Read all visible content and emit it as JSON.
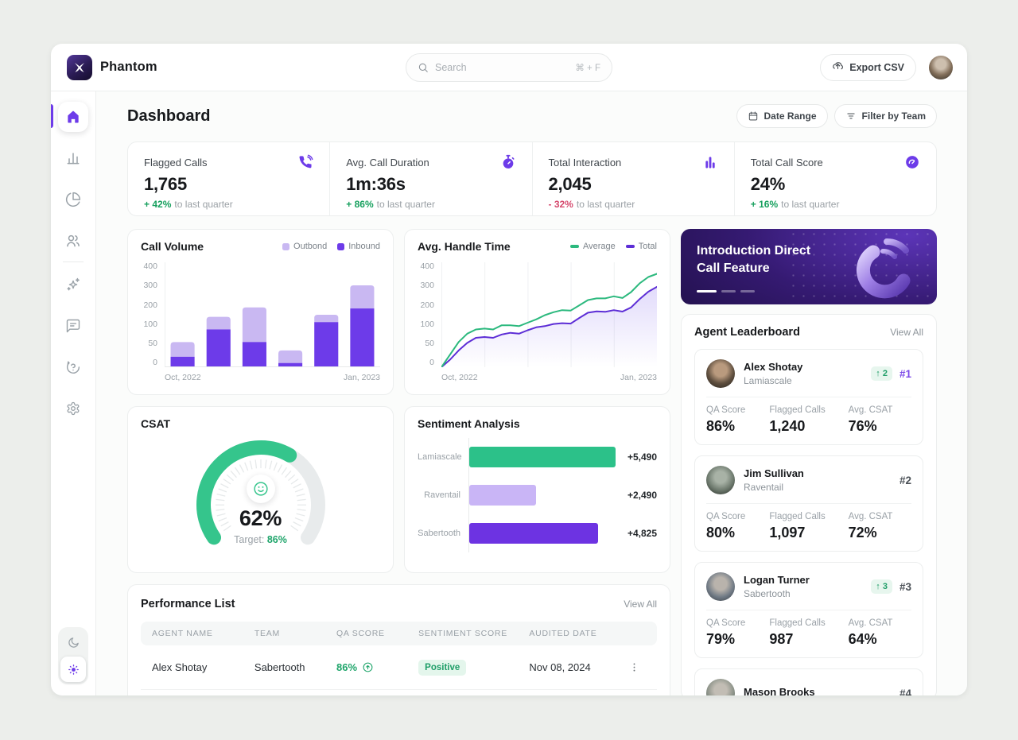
{
  "app": {
    "name": "Phantom"
  },
  "topbar": {
    "search": {
      "placeholder": "Search",
      "shortcut": "⌘ + F"
    },
    "export_label": "Export CSV",
    "icons": [
      "search-icon",
      "upload-icon",
      "avatar"
    ]
  },
  "sidebar": {
    "icons": [
      "home-icon",
      "bar-chart-icon",
      "pie-chart-icon",
      "users-icon",
      "sparkles-icon",
      "chat-icon",
      "help-icon",
      "gear-icon",
      "moon-icon",
      "sun-icon"
    ],
    "active": "home-icon",
    "theme_active": "sun-icon"
  },
  "page": {
    "title": "Dashboard",
    "actions": {
      "date_range": "Date Range",
      "filter": "Filter by Team"
    }
  },
  "stats": [
    {
      "label": "Flagged Calls",
      "value": "1,765",
      "delta": "+ 42%",
      "delta_dir": "up",
      "note": "to last quarter",
      "icon": "phone-icon"
    },
    {
      "label": "Avg. Call Duration",
      "value": "1m:36s",
      "delta": "+ 86%",
      "delta_dir": "up",
      "note": "to last quarter",
      "icon": "stopwatch-icon"
    },
    {
      "label": "Total Interaction",
      "value": "2,045",
      "delta": "- 32%",
      "delta_dir": "down",
      "note": "to last quarter",
      "icon": "columns-icon"
    },
    {
      "label": "Total Call Score",
      "value": "24%",
      "delta": "+ 16%",
      "delta_dir": "up",
      "note": "to last quarter",
      "icon": "gauge-icon"
    }
  ],
  "chart_data": [
    {
      "id": "call_volume",
      "type": "bar",
      "stacked": true,
      "title": "Call Volume",
      "x_labels": [
        "Oct, 2022",
        "Jan, 2023"
      ],
      "y_ticks": [
        0,
        50,
        100,
        200,
        300,
        400
      ],
      "series": [
        {
          "name": "Outbond",
          "color": "#c9b8f2",
          "values": [
            35,
            50,
            125,
            30,
            35,
            110
          ]
        },
        {
          "name": "Inbound",
          "color": "#6d3be9",
          "values": [
            25,
            90,
            60,
            10,
            115,
            180
          ]
        }
      ]
    },
    {
      "id": "handle_time",
      "type": "line",
      "title": "Avg. Handle Time",
      "x_labels": [
        "Oct, 2022",
        "Jan, 2023"
      ],
      "y_ticks": [
        0,
        50,
        100,
        200,
        300,
        400
      ],
      "grid": "vertical",
      "series": [
        {
          "name": "Average",
          "color": "#2cb97e",
          "values": [
            0,
            30,
            60,
            80,
            90,
            92,
            90,
            100,
            100,
            98,
            112,
            128,
            148,
            162,
            172,
            170,
            195,
            220,
            228,
            228,
            238,
            230,
            258,
            300,
            330,
            345
          ]
        },
        {
          "name": "Total",
          "color": "#5d2ed6",
          "fill": true,
          "values": [
            0,
            18,
            40,
            58,
            70,
            72,
            70,
            78,
            82,
            80,
            88,
            95,
            98,
            106,
            110,
            108,
            135,
            160,
            166,
            164,
            172,
            165,
            185,
            225,
            260,
            283
          ]
        }
      ]
    },
    {
      "id": "csat",
      "type": "gauge",
      "title": "CSAT",
      "value_pct": 62,
      "value_label": "62%",
      "target_label": "Target:",
      "target_value": "86%",
      "color": "#35c58c",
      "track_color": "#e8ebec"
    },
    {
      "id": "sentiment",
      "type": "bar_horizontal",
      "title": "Sentiment Analysis",
      "categories": [
        "Lamiascale",
        "Raventail",
        "Sabertooth"
      ],
      "values": [
        5490,
        2490,
        4825
      ],
      "value_labels": [
        "+5,490",
        "+2,490",
        "+4,825"
      ],
      "colors": [
        "#2cc189",
        "#c9b5f6",
        "#6d33e2"
      ]
    }
  ],
  "banner": {
    "title_line1": "Introduction Direct",
    "title_line2": "Call Feature",
    "slides": 3,
    "active_slide": 0
  },
  "leaderboard": {
    "title": "Agent Leaderboard",
    "view_all": "View All",
    "stat_labels": {
      "qa": "QA Score",
      "flagged": "Flagged Calls",
      "csat": "Avg. CSAT"
    },
    "entries": [
      {
        "name": "Alex Shotay",
        "team": "Lamiascale",
        "rank": "#1",
        "change": "↑ 2",
        "qa": "86%",
        "flagged": "1,240",
        "csat": "76%"
      },
      {
        "name": "Jim Sullivan",
        "team": "Raventail",
        "rank": "#2",
        "change": "",
        "qa": "80%",
        "flagged": "1,097",
        "csat": "72%"
      },
      {
        "name": "Logan Turner",
        "team": "Sabertooth",
        "rank": "#3",
        "change": "↑ 3",
        "qa": "79%",
        "flagged": "987",
        "csat": "64%"
      },
      {
        "name": "Mason Brooks",
        "team": "",
        "rank": "#4",
        "change": "",
        "qa": "",
        "flagged": "",
        "csat": ""
      }
    ]
  },
  "performance": {
    "title": "Performance List",
    "view_all": "View All",
    "columns": [
      "Agent Name",
      "Team",
      "QA Score",
      "Sentiment Score",
      "Audited Date"
    ],
    "rows": [
      {
        "agent": "Alex Shotay",
        "team": "Sabertooth",
        "qa_score": "86%",
        "sentiment": "Positive",
        "date": "Nov 08, 2024"
      }
    ]
  },
  "theme": {
    "accent": "#6d3be9",
    "accent_light": "#c9b8f2",
    "green": "#17a05e",
    "red": "#d5496d"
  }
}
